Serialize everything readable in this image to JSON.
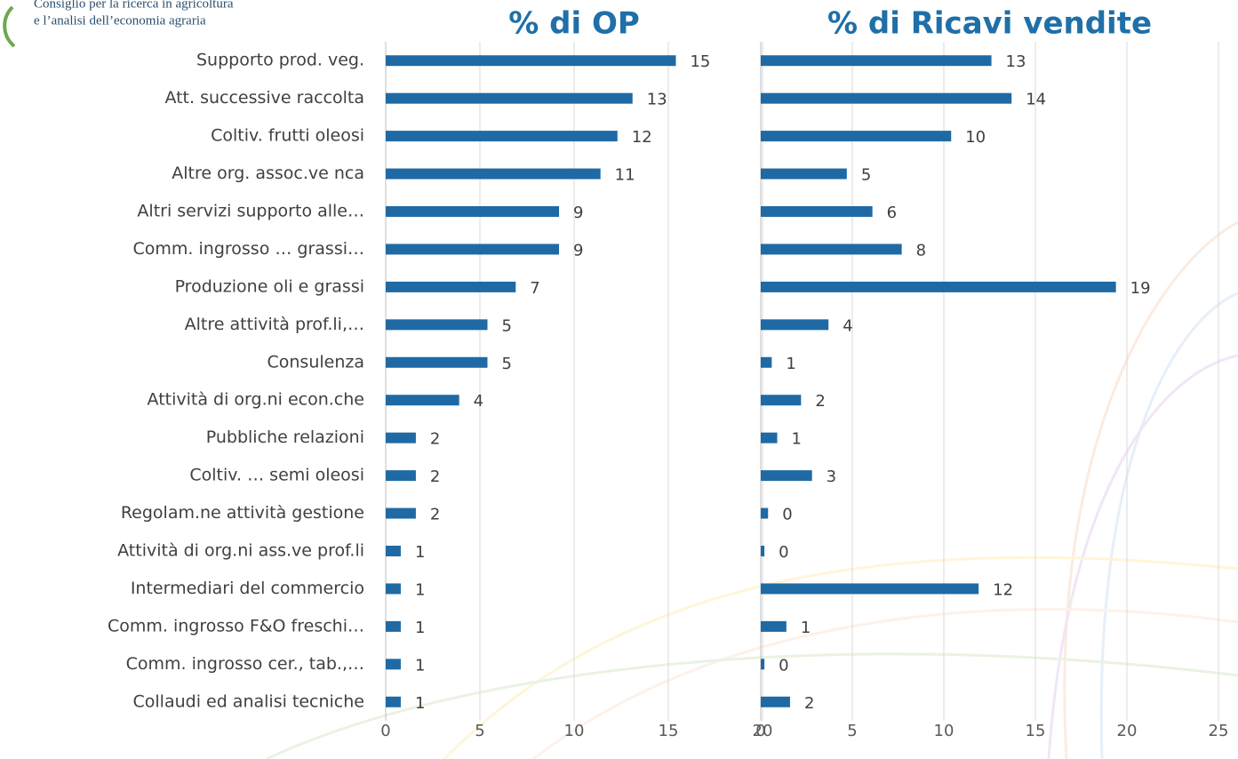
{
  "header": {
    "lines": [
      "Consiglio per la ricerca in agricoltura",
      "e l’analisi dell’economia agraria"
    ]
  },
  "chart_data": [
    {
      "type": "barh",
      "title": "% di OP",
      "categories": [
        "Supporto prod. veg.",
        "Att. successive raccolta",
        "Coltiv.  frutti oleosi",
        "Altre org. assoc.ve nca",
        "Altri servizi supporto alle…",
        "Comm. ingrosso … grassi…",
        "Produzione oli e grassi",
        "Altre attività prof.li,…",
        "Consulenza",
        "Attività di org.ni econ.che",
        "Pubbliche relazioni",
        "Coltiv. … semi oleosi",
        "Regolam.ne  attività gestione",
        "Attività di org.ni ass.ve prof.li",
        "Intermediari del commercio",
        "Comm. ingrosso F&O freschi…",
        "Comm. ingrosso cer., tab.,…",
        "Collaudi ed analisi tecniche"
      ],
      "values": [
        15.4,
        13.1,
        12.3,
        11.4,
        9.2,
        9.2,
        6.9,
        5.4,
        5.4,
        3.9,
        1.6,
        1.6,
        1.6,
        0.8,
        0.8,
        0.8,
        0.8,
        0.8
      ],
      "value_labels": [
        "15",
        "13",
        "12",
        "11",
        "9",
        "9",
        "7",
        "5",
        "5",
        "4",
        "2",
        "2",
        "2",
        "1",
        "1",
        "1",
        "1",
        "1"
      ],
      "color": "#1f6aa5",
      "xlim": [
        0,
        20
      ],
      "xticks": [
        0,
        5,
        10,
        15,
        20
      ],
      "grid": true
    },
    {
      "type": "barh",
      "title": "% di Ricavi vendite",
      "values": [
        12.6,
        13.7,
        10.4,
        4.7,
        6.1,
        7.7,
        19.4,
        3.7,
        0.6,
        2.2,
        0.9,
        2.8,
        0.4,
        0.2,
        11.9,
        1.4,
        0.2,
        1.6
      ],
      "value_labels": [
        "13",
        "14",
        "10",
        "5",
        "6",
        "8",
        "19",
        "4",
        "1",
        "2",
        "1",
        "3",
        "0",
        "0",
        "12",
        "1",
        "0",
        "2"
      ],
      "color": "#1f6aa5",
      "xlim": [
        0,
        25
      ],
      "xticks": [
        0,
        5,
        10,
        15,
        20,
        25
      ],
      "grid": true
    }
  ]
}
